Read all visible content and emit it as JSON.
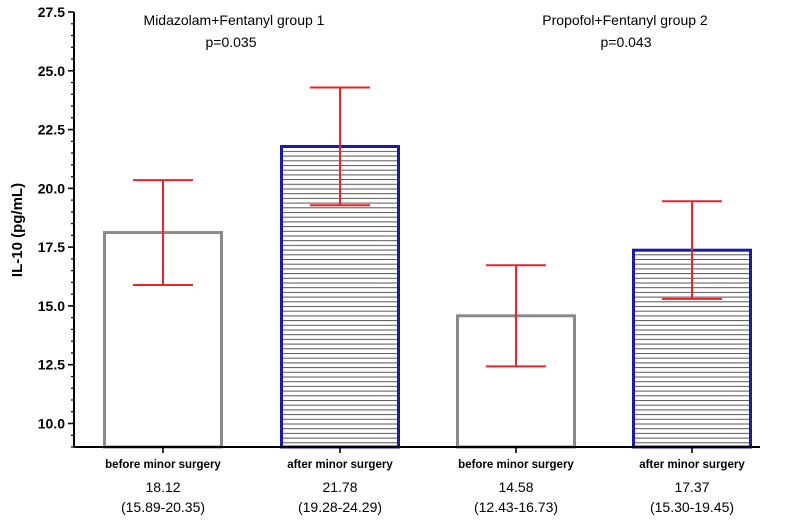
{
  "chart_data": {
    "type": "bar",
    "title": "",
    "xlabel": "",
    "ylabel": "IL-10 (pg/mL)",
    "ylim": [
      9.0,
      27.5
    ],
    "yticks": [
      "10.0",
      "12.5",
      "15.0",
      "17.5",
      "20.0",
      "22.5",
      "25.0",
      "27.5"
    ],
    "minor_tick_step": 0.5,
    "grid": false,
    "categories": [
      "before minor surgery",
      "after minor surgery",
      "before minor surgery",
      "after minor surgery"
    ],
    "values": [
      18.12,
      21.78,
      14.58,
      17.37
    ],
    "error_low": [
      15.89,
      19.28,
      12.43,
      15.3
    ],
    "error_high": [
      20.35,
      24.29,
      16.73,
      19.45
    ],
    "value_labels": [
      "18.12",
      "21.78",
      "14.58",
      "17.37"
    ],
    "range_labels": [
      "(15.89-20.35)",
      "(19.28-24.29)",
      "(12.43-16.73)",
      "(15.30-19.45)"
    ],
    "bar_styles": [
      "empty",
      "hatched",
      "empty",
      "hatched"
    ],
    "annotations": [
      {
        "group": "Midazolam+Fentanyl group 1",
        "p": "p=0.035"
      },
      {
        "group": "Propofol+Fentanyl group 2",
        "p": "p=0.043"
      }
    ],
    "colors": {
      "empty_bar": "#8a8a8a",
      "hatched_bar": "#1a1aa8",
      "hatch": "#555555",
      "error_bar": "#e8262a",
      "axis": "#000000"
    }
  }
}
